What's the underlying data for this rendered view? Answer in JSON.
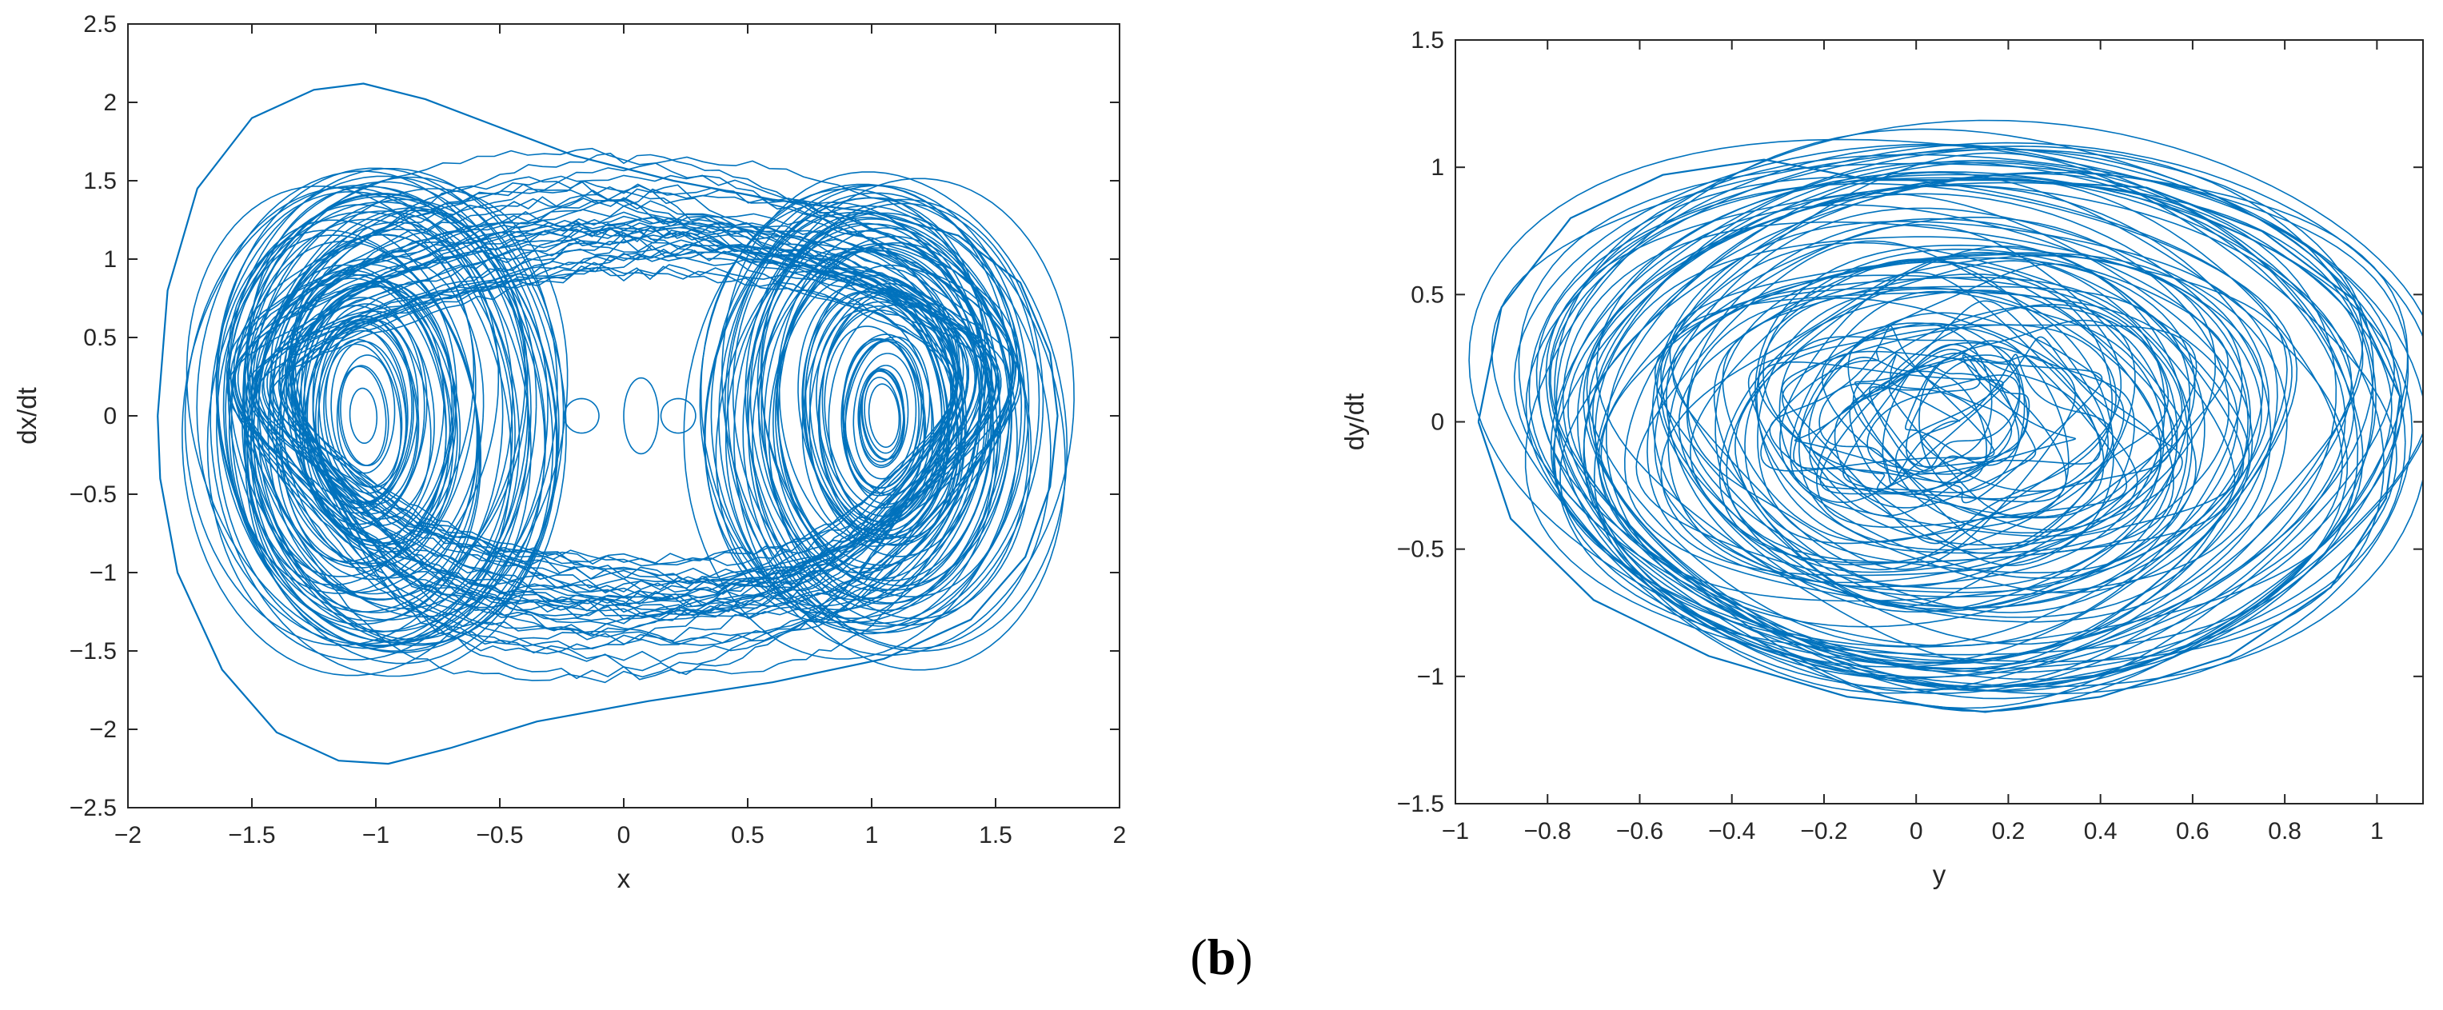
{
  "caption": {
    "open": "(",
    "letter": "b",
    "close": ")"
  },
  "colors": {
    "series": "#0072BD",
    "axis": "#262626",
    "background": "#ffffff"
  },
  "chart_data": [
    {
      "type": "line",
      "title": "",
      "xlabel": "x",
      "ylabel": "dx/dt",
      "xlim": [
        -2,
        2
      ],
      "ylim": [
        -2.5,
        2.5
      ],
      "xticks": [
        -2,
        -1.5,
        -1,
        -0.5,
        0,
        0.5,
        1,
        1.5,
        2
      ],
      "xtick_labels": [
        "−2",
        "−1.5",
        "−1",
        "−0.5",
        "0",
        "0.5",
        "1",
        "1.5",
        "2"
      ],
      "yticks": [
        -2.5,
        -2,
        -1.5,
        -1,
        -0.5,
        0,
        0.5,
        1,
        1.5,
        2,
        2.5
      ],
      "ytick_labels": [
        "−2.5",
        "−2",
        "−1.5",
        "−1",
        "−0.5",
        "0",
        "0.5",
        "1",
        "1.5",
        "2",
        "2.5"
      ],
      "grid": false,
      "legend": "none",
      "description": "double-scroll phase portrait trajectory",
      "extent": {
        "x_range": [
          -1.88,
          1.75
        ],
        "y_range": [
          -2.22,
          2.12
        ]
      },
      "lobes": [
        {
          "center": [
            -1.05,
            0.0
          ],
          "x_radius_range": [
            0.05,
            0.72
          ],
          "y_radius_range": [
            0.15,
            1.6
          ]
        },
        {
          "center": [
            1.05,
            0.0
          ],
          "x_radius_range": [
            0.05,
            0.7
          ],
          "y_radius_range": [
            0.15,
            1.55
          ]
        }
      ],
      "series": [
        {
          "name": "",
          "points": [
            [
              -1.88,
              0.0
            ],
            [
              -1.84,
              0.8
            ],
            [
              -1.72,
              1.45
            ],
            [
              -1.5,
              1.9
            ],
            [
              -1.25,
              2.08
            ],
            [
              -1.05,
              2.12
            ],
            [
              -0.8,
              2.02
            ],
            [
              -0.5,
              1.84
            ],
            [
              -0.2,
              1.66
            ],
            [
              0.2,
              1.5
            ],
            [
              0.6,
              1.38
            ],
            [
              1.0,
              1.3
            ],
            [
              1.35,
              1.15
            ],
            [
              1.6,
              0.85
            ],
            [
              1.72,
              0.4
            ],
            [
              1.75,
              0.0
            ],
            [
              1.72,
              -0.45
            ],
            [
              1.62,
              -0.9
            ],
            [
              1.4,
              -1.3
            ],
            [
              1.05,
              -1.55
            ],
            [
              0.6,
              -1.7
            ],
            [
              0.1,
              -1.82
            ],
            [
              -0.35,
              -1.95
            ],
            [
              -0.7,
              -2.12
            ],
            [
              -0.95,
              -2.22
            ],
            [
              -1.15,
              -2.2
            ],
            [
              -1.4,
              -2.02
            ],
            [
              -1.62,
              -1.62
            ],
            [
              -1.8,
              -1.0
            ],
            [
              -1.87,
              -0.4
            ],
            [
              -1.88,
              0.0
            ]
          ]
        }
      ]
    },
    {
      "type": "line",
      "title": "",
      "xlabel": "y",
      "ylabel": "dy/dt",
      "xlim": [
        -1,
        1.1
      ],
      "ylim": [
        -1.5,
        1.5
      ],
      "xticks": [
        -1,
        -0.8,
        -0.6,
        -0.4,
        -0.2,
        0,
        0.2,
        0.4,
        0.6,
        0.8,
        1
      ],
      "xtick_labels": [
        "−1",
        "−0.8",
        "−0.6",
        "−0.4",
        "−0.2",
        "0",
        "0.2",
        "0.4",
        "0.6",
        "0.8",
        "1"
      ],
      "yticks": [
        -1.5,
        -1,
        -0.5,
        0,
        0.5,
        1,
        1.5
      ],
      "ytick_labels": [
        "−1.5",
        "−1",
        "−0.5",
        "0",
        "0.5",
        "1",
        "1.5"
      ],
      "grid": false,
      "legend": "none",
      "description": "nested elliptical phase portrait trajectory",
      "extent": {
        "x_range": [
          -0.95,
          1.05
        ],
        "y_range": [
          -1.14,
          1.03
        ]
      },
      "series": [
        {
          "name": "",
          "points": [
            [
              -0.95,
              0.0
            ],
            [
              -0.9,
              0.45
            ],
            [
              -0.75,
              0.8
            ],
            [
              -0.55,
              0.97
            ],
            [
              -0.33,
              1.03
            ],
            [
              -0.1,
              0.95
            ],
            [
              0.2,
              0.95
            ],
            [
              0.5,
              0.92
            ],
            [
              0.75,
              0.75
            ],
            [
              0.95,
              0.48
            ],
            [
              1.05,
              0.1
            ],
            [
              1.02,
              -0.3
            ],
            [
              0.9,
              -0.65
            ],
            [
              0.68,
              -0.92
            ],
            [
              0.4,
              -1.08
            ],
            [
              0.15,
              -1.14
            ],
            [
              -0.15,
              -1.08
            ],
            [
              -0.45,
              -0.92
            ],
            [
              -0.7,
              -0.7
            ],
            [
              -0.88,
              -0.38
            ],
            [
              -0.95,
              0.0
            ]
          ]
        }
      ]
    }
  ]
}
